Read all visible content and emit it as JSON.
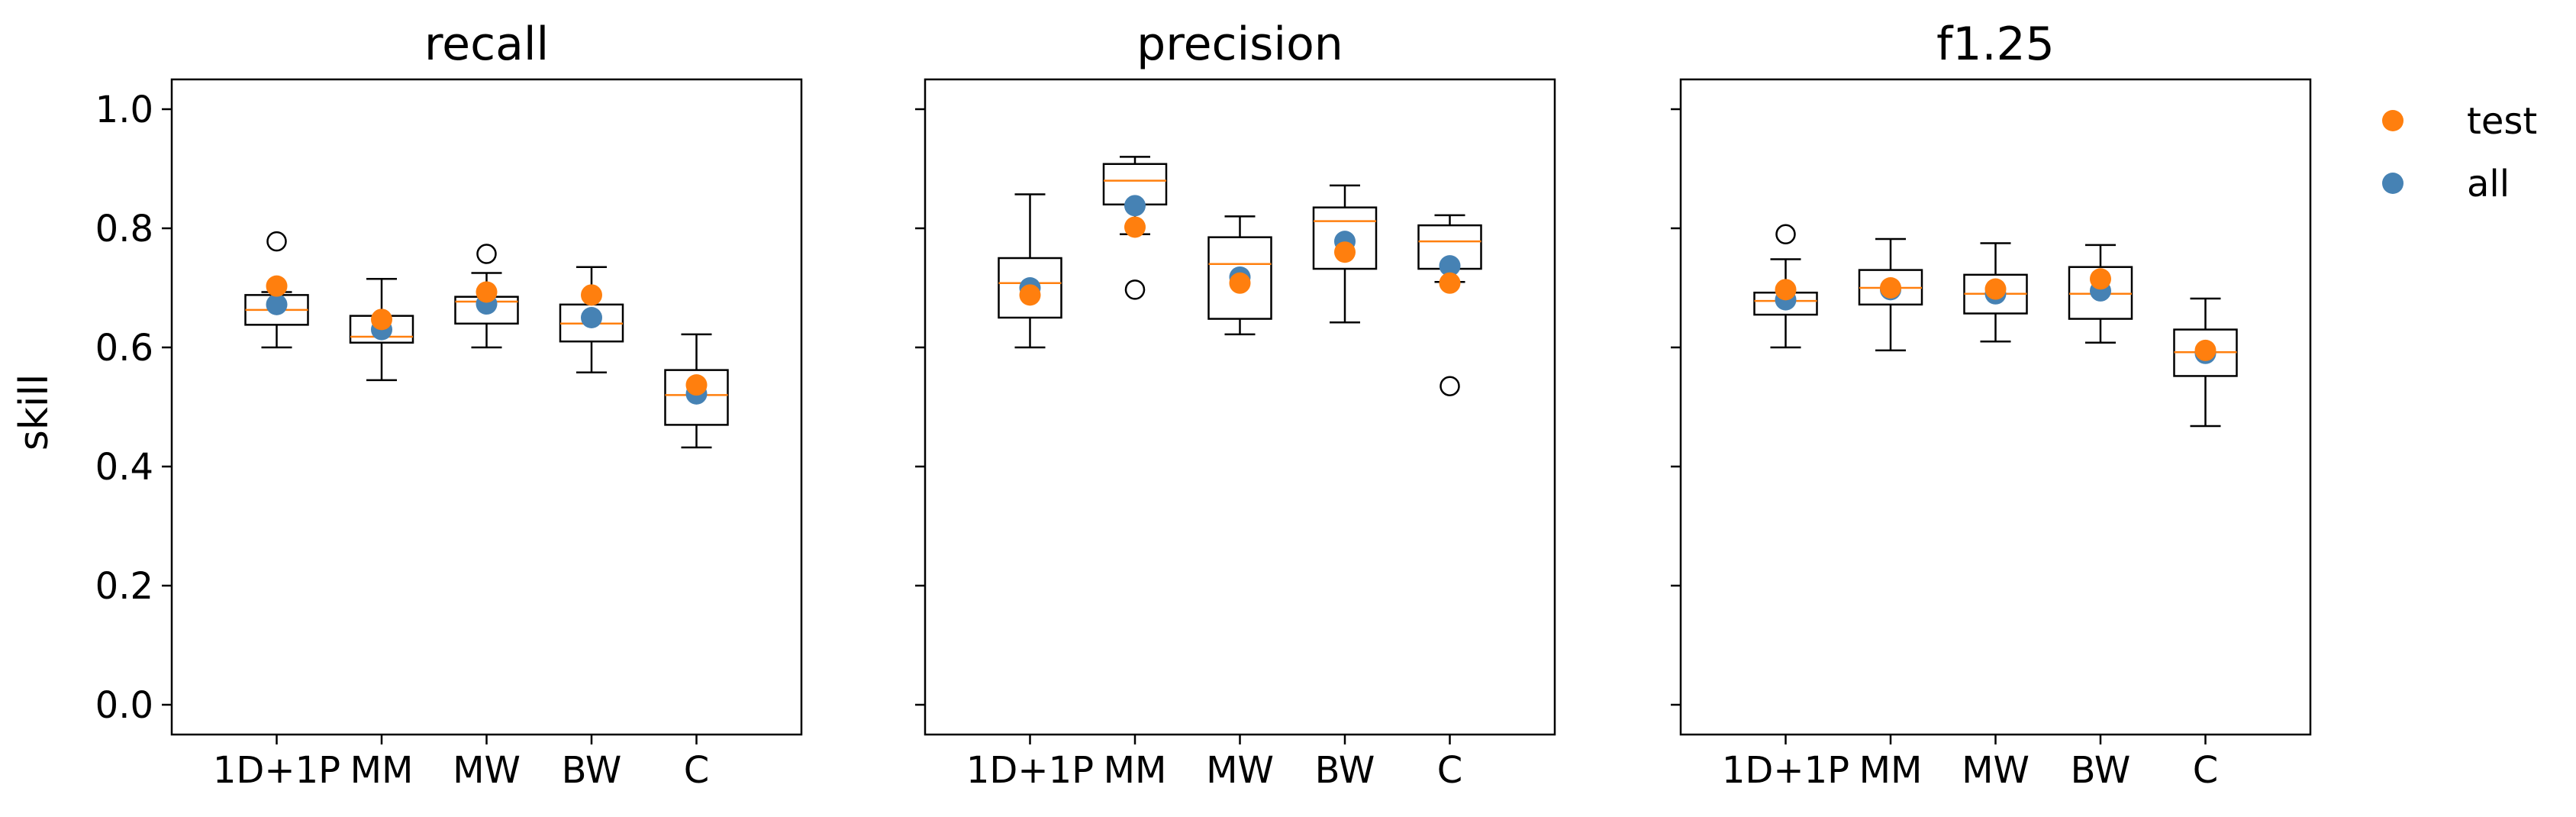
{
  "chart_data": {
    "type": "box",
    "ylabel": "skill",
    "ylim": [
      -0.05,
      1.05
    ],
    "yticks": [
      "0.0",
      "0.2",
      "0.4",
      "0.6",
      "0.8",
      "1.0"
    ],
    "categories": [
      "1D+1P",
      "MM",
      "MW",
      "BW",
      "C"
    ],
    "legend": {
      "placement": "top-right",
      "entries": [
        {
          "name": "test",
          "color": "#ff7f0e"
        },
        {
          "name": "all",
          "color": "#4682b4"
        }
      ]
    },
    "colors": {
      "median": "#ff7f0e",
      "test": "#ff7f0e",
      "all": "#4682b4",
      "box": "#000000"
    },
    "panels": [
      {
        "title": "recall",
        "boxes": [
          {
            "whislo": 0.6,
            "q1": 0.638,
            "med": 0.663,
            "q3": 0.688,
            "whishi": 0.693,
            "fliers": [
              0.778
            ]
          },
          {
            "whislo": 0.545,
            "q1": 0.608,
            "med": 0.618,
            "q3": 0.653,
            "whishi": 0.715,
            "fliers": []
          },
          {
            "whislo": 0.6,
            "q1": 0.64,
            "med": 0.677,
            "q3": 0.685,
            "whishi": 0.725,
            "fliers": [
              0.757
            ]
          },
          {
            "whislo": 0.558,
            "q1": 0.61,
            "med": 0.64,
            "q3": 0.672,
            "whishi": 0.735,
            "fliers": []
          },
          {
            "whislo": 0.432,
            "q1": 0.47,
            "med": 0.52,
            "q3": 0.562,
            "whishi": 0.622,
            "fliers": []
          }
        ],
        "test": [
          0.703,
          0.647,
          0.693,
          0.688,
          0.537
        ],
        "all": [
          0.672,
          0.63,
          0.673,
          0.65,
          0.522
        ]
      },
      {
        "title": "precision",
        "boxes": [
          {
            "whislo": 0.6,
            "q1": 0.65,
            "med": 0.708,
            "q3": 0.75,
            "whishi": 0.857,
            "fliers": []
          },
          {
            "whislo": 0.79,
            "q1": 0.84,
            "med": 0.88,
            "q3": 0.908,
            "whishi": 0.92,
            "fliers": [
              0.697
            ]
          },
          {
            "whislo": 0.622,
            "q1": 0.648,
            "med": 0.74,
            "q3": 0.785,
            "whishi": 0.82,
            "fliers": []
          },
          {
            "whislo": 0.642,
            "q1": 0.732,
            "med": 0.812,
            "q3": 0.835,
            "whishi": 0.872,
            "fliers": []
          },
          {
            "whislo": 0.71,
            "q1": 0.732,
            "med": 0.778,
            "q3": 0.805,
            "whishi": 0.822,
            "fliers": [
              0.535
            ]
          }
        ],
        "test": [
          0.688,
          0.802,
          0.708,
          0.76,
          0.708
        ],
        "all": [
          0.7,
          0.838,
          0.718,
          0.778,
          0.737
        ]
      },
      {
        "title": "f1.25",
        "boxes": [
          {
            "whislo": 0.6,
            "q1": 0.655,
            "med": 0.678,
            "q3": 0.692,
            "whishi": 0.748,
            "fliers": [
              0.79
            ]
          },
          {
            "whislo": 0.595,
            "q1": 0.672,
            "med": 0.7,
            "q3": 0.73,
            "whishi": 0.782,
            "fliers": []
          },
          {
            "whislo": 0.61,
            "q1": 0.657,
            "med": 0.69,
            "q3": 0.722,
            "whishi": 0.775,
            "fliers": []
          },
          {
            "whislo": 0.608,
            "q1": 0.648,
            "med": 0.69,
            "q3": 0.735,
            "whishi": 0.772,
            "fliers": []
          },
          {
            "whislo": 0.468,
            "q1": 0.552,
            "med": 0.592,
            "q3": 0.63,
            "whishi": 0.682,
            "fliers": []
          }
        ],
        "test": [
          0.697,
          0.7,
          0.698,
          0.715,
          0.595
        ],
        "all": [
          0.68,
          0.697,
          0.69,
          0.695,
          0.59
        ]
      }
    ]
  }
}
